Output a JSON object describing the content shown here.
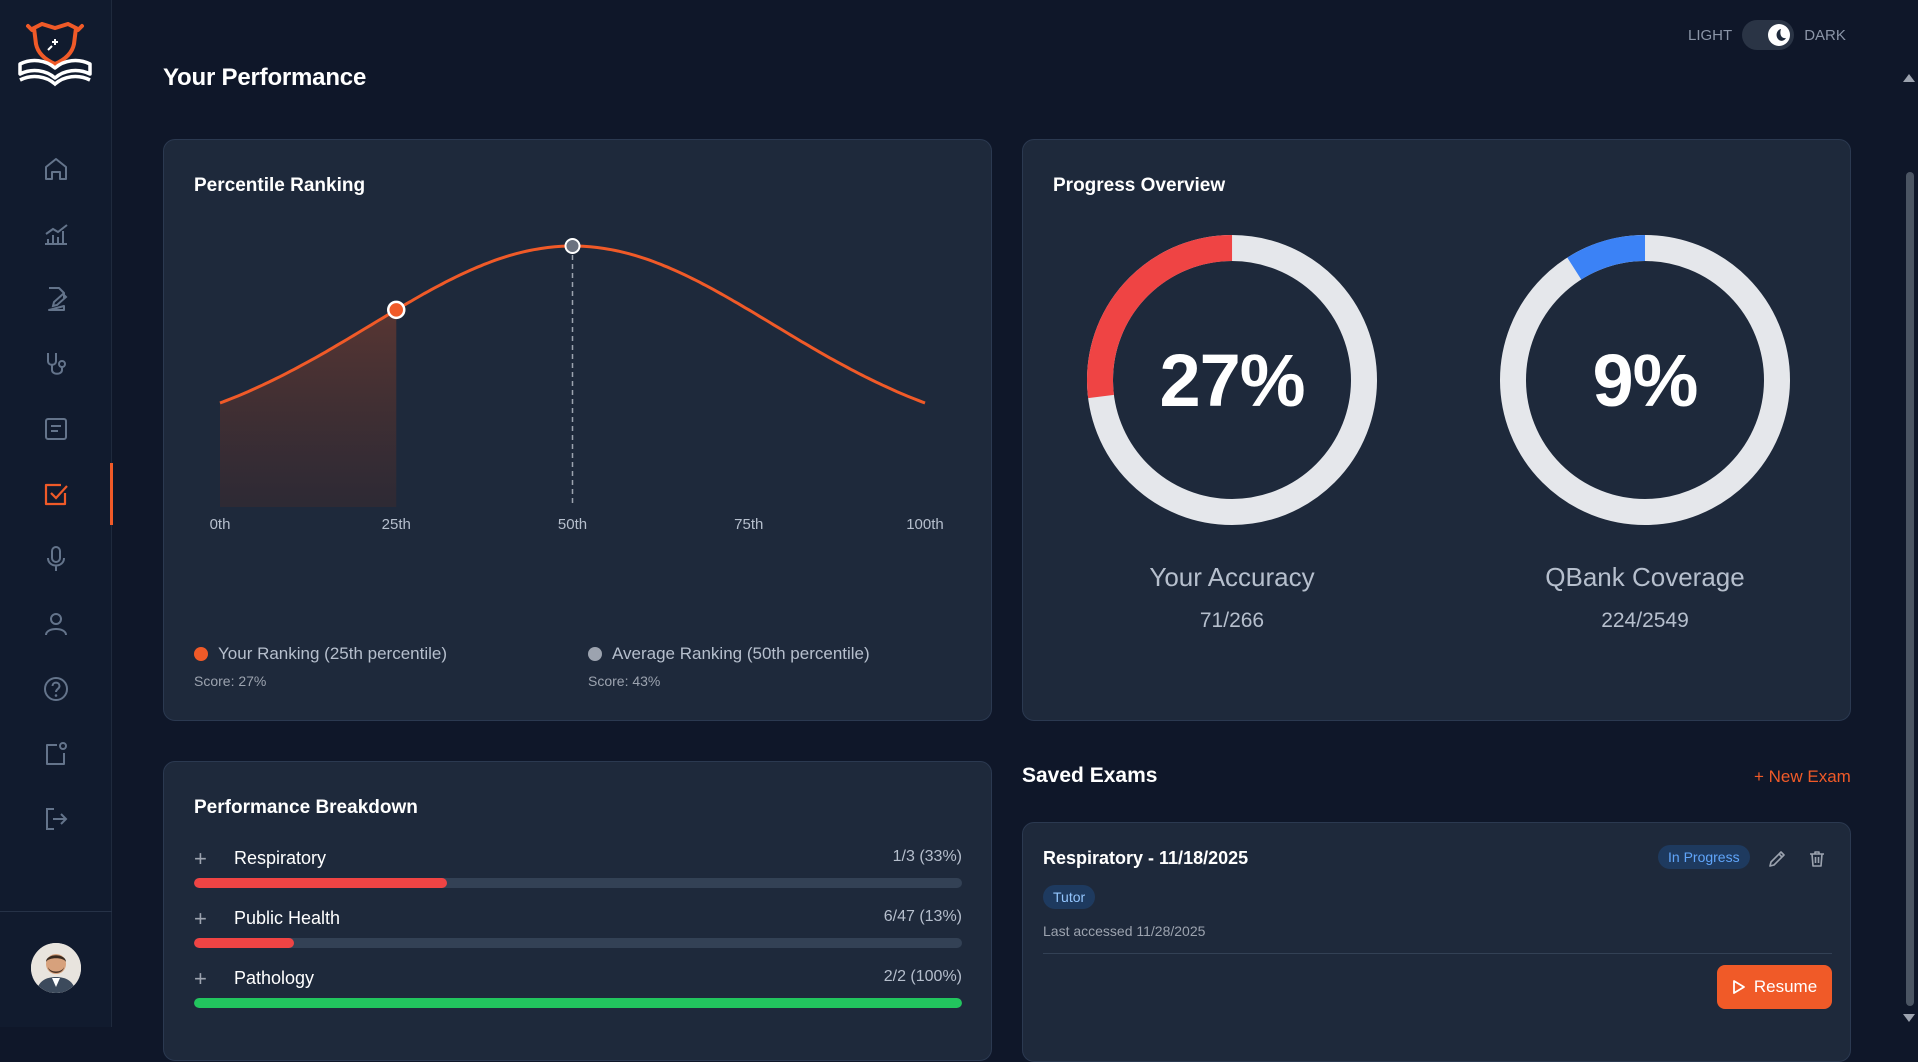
{
  "header": {
    "title": "Your Performance",
    "theme_light_label": "LIGHT",
    "theme_dark_label": "DARK"
  },
  "sidebar": {
    "items": [
      {
        "name": "home-icon"
      },
      {
        "name": "analytics-icon"
      },
      {
        "name": "edit-document-icon"
      },
      {
        "name": "stethoscope-icon"
      },
      {
        "name": "notes-icon"
      },
      {
        "name": "checkbox-icon",
        "active": true
      },
      {
        "name": "microphone-icon"
      },
      {
        "name": "user-icon"
      },
      {
        "name": "help-icon"
      },
      {
        "name": "notification-icon"
      },
      {
        "name": "logout-icon"
      }
    ]
  },
  "colors": {
    "accent": "#f05a28",
    "background": "#0f1729",
    "card": "#1e293b",
    "accuracy_ring": "#ef4444",
    "coverage_ring": "#3b82f6",
    "ring_track": "#e5e7eb",
    "bar_red": "#ef4444",
    "bar_green": "#22c55e",
    "average_marker": "#9ca3af"
  },
  "percentile": {
    "title": "Percentile Ranking",
    "your_legend": "Your Ranking (25th percentile)",
    "your_score": "Score: 27%",
    "avg_legend": "Average Ranking (50th percentile)",
    "avg_score": "Score: 43%"
  },
  "chart_data": {
    "type": "area",
    "title": "Percentile Ranking",
    "x_ticks": [
      "0th",
      "25th",
      "50th",
      "75th",
      "100th"
    ],
    "xlim": [
      0,
      100
    ],
    "curve": "bell",
    "your_percentile": 25,
    "average_percentile": 50,
    "series": [
      {
        "name": "Your Ranking",
        "percentile": 25,
        "score": 27
      },
      {
        "name": "Average Ranking",
        "percentile": 50,
        "score": 43
      }
    ]
  },
  "progress": {
    "title": "Progress Overview",
    "accuracy": {
      "label": "Your Accuracy",
      "value": "27%",
      "fraction": "71/266",
      "percent": 27
    },
    "coverage": {
      "label": "QBank Coverage",
      "value": "9%",
      "fraction": "224/2549",
      "percent": 9
    }
  },
  "breakdown": {
    "title": "Performance Breakdown",
    "items": [
      {
        "name": "Respiratory",
        "score": "1/3 (33%)",
        "percent": 33,
        "color": "#ef4444"
      },
      {
        "name": "Public Health",
        "score": "6/47 (13%)",
        "percent": 13,
        "color": "#ef4444"
      },
      {
        "name": "Pathology",
        "score": "2/2 (100%)",
        "percent": 100,
        "color": "#22c55e"
      }
    ]
  },
  "saved_exams": {
    "title": "Saved Exams",
    "new_exam_label": "+ New Exam",
    "exam": {
      "title": "Respiratory - 11/18/2025",
      "status": "In Progress",
      "mode": "Tutor",
      "last_accessed": "Last accessed 11/28/2025",
      "resume_label": "Resume"
    }
  }
}
